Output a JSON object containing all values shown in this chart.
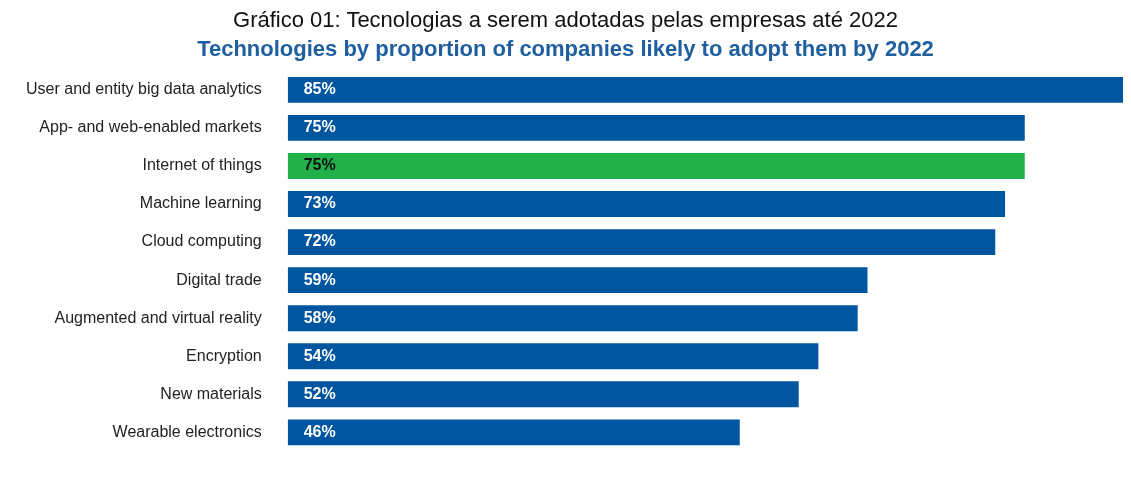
{
  "chart_data": {
    "type": "bar",
    "orientation": "horizontal",
    "title": "Gráfico 01: Tecnologias a serem adotadas pelas empresas até 2022",
    "subtitle": "Technologies by proportion of companies likely to adopt them by 2022",
    "categories": [
      "User and entity big data analytics",
      "App- and web-enabled markets",
      "Internet of things",
      "Machine learning",
      "Cloud computing",
      "Digital trade",
      "Augmented and virtual reality",
      "Encryption",
      "New materials",
      "Wearable electronics"
    ],
    "values": [
      85,
      75,
      75,
      73,
      72,
      59,
      58,
      54,
      52,
      46
    ],
    "colors": [
      "#0055a0",
      "#0055a0",
      "#22b04b",
      "#0055a0",
      "#0055a0",
      "#0055a0",
      "#0055a0",
      "#0055a0",
      "#0055a0",
      "#0055a0"
    ],
    "value_labels": [
      "85%",
      "75%",
      "75%",
      "73%",
      "72%",
      "59%",
      "58%",
      "54%",
      "52%",
      "46%"
    ],
    "xlim": [
      0,
      85
    ],
    "legend": false,
    "tick_labels": "y"
  }
}
